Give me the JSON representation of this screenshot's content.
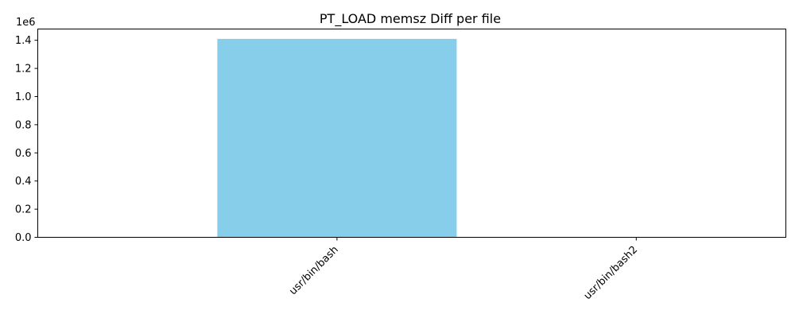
{
  "chart_data": {
    "type": "bar",
    "title": "PT_LOAD memsz Diff per file",
    "xlabel": "",
    "ylabel": "",
    "categories": [
      "usr/bin/bash",
      "usr/bin/bash2"
    ],
    "values": [
      1410000,
      0
    ],
    "ylim": [
      0,
      1480000
    ],
    "yticks": [
      0,
      200000,
      400000,
      600000,
      800000,
      1000000,
      1200000,
      1400000
    ],
    "ytick_labels": [
      "0.0",
      "0.2",
      "0.4",
      "0.6",
      "0.8",
      "1.0",
      "1.2",
      "1.4"
    ],
    "y_offset_label": "1e6",
    "bar_color": "#87ceeb",
    "grid": false,
    "legend": "none"
  }
}
